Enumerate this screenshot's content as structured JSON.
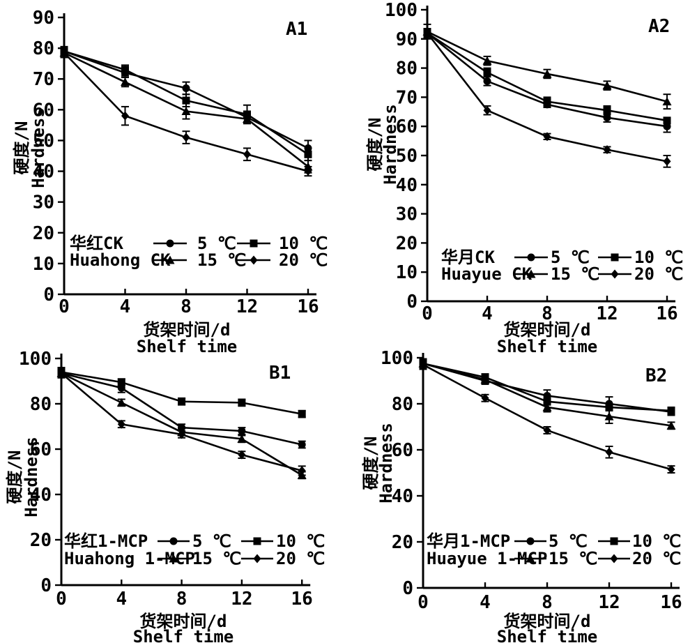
{
  "page": {
    "background": "#ffffff",
    "ink": "#000000"
  },
  "chart_data": [
    {
      "id": "A1",
      "type": "line",
      "panel_label": "A1",
      "group_label_cn": "华红CK",
      "group_label_en": "Huahong CK",
      "xlabel_cn": "货架时间/d",
      "xlabel_en": "Shelf time",
      "ylabel_cn": "硬度/N",
      "ylabel_en": "Hardness",
      "x": [
        0,
        4,
        8,
        12,
        16
      ],
      "ylim": [
        0,
        90
      ],
      "ytick_step": 10,
      "grid": false,
      "legend_position": "inside-bottom-left",
      "series": [
        {
          "name": "5 ℃",
          "marker": "circle",
          "values": [
            79,
            72,
            67,
            57.5,
            47.5
          ],
          "errors": [
            1.5,
            1,
            2,
            1.5,
            2.5
          ]
        },
        {
          "name": "10 ℃",
          "marker": "square",
          "values": [
            79,
            73,
            63,
            58.5,
            45.5
          ],
          "errors": [
            1.5,
            1.5,
            2,
            3,
            2
          ]
        },
        {
          "name": "15 ℃",
          "marker": "triangle",
          "values": [
            78.5,
            69,
            59.5,
            57,
            41.5
          ],
          "errors": [
            1.5,
            1.5,
            2.5,
            1.5,
            2
          ]
        },
        {
          "name": "20 ℃",
          "marker": "diamond",
          "values": [
            78.5,
            58,
            51,
            45.5,
            40
          ],
          "errors": [
            1.5,
            3,
            2,
            2,
            1.5
          ]
        }
      ]
    },
    {
      "id": "A2",
      "type": "line",
      "panel_label": "A2",
      "group_label_cn": "华月CK",
      "group_label_en": "Huayue CK",
      "xlabel_cn": "货架时间/d",
      "xlabel_en": "Shelf time",
      "ylabel_cn": "硬度/N",
      "ylabel_en": "Hardness",
      "x": [
        0,
        4,
        8,
        12,
        16
      ],
      "ylim": [
        0,
        100
      ],
      "ytick_step": 10,
      "grid": false,
      "legend_position": "inside-bottom-left",
      "series": [
        {
          "name": "5 ℃",
          "marker": "circle",
          "values": [
            92,
            75.5,
            67.5,
            63,
            60
          ],
          "errors": [
            1.5,
            1.5,
            1,
            1.5,
            2
          ]
        },
        {
          "name": "10 ℃",
          "marker": "square",
          "values": [
            92,
            78.5,
            68.5,
            65.5,
            62
          ],
          "errors": [
            1.5,
            1.5,
            1.5,
            1.5,
            1
          ]
        },
        {
          "name": "15 ℃",
          "marker": "triangle",
          "values": [
            92.5,
            82.5,
            78,
            74,
            68.5
          ],
          "errors": [
            2.5,
            1.5,
            1.5,
            1.5,
            2.5
          ]
        },
        {
          "name": "20 ℃",
          "marker": "diamond",
          "values": [
            92,
            65.5,
            56.5,
            52,
            48
          ],
          "errors": [
            1.5,
            1.5,
            1,
            1,
            2
          ]
        }
      ]
    },
    {
      "id": "B1",
      "type": "line",
      "panel_label": "B1",
      "group_label_cn": "华红1-MCP",
      "group_label_en": "Huahong 1-MCP",
      "xlabel_cn": "货架时间/d",
      "xlabel_en": "Shelf time",
      "ylabel_cn": "硬度/N",
      "ylabel_en": "Hardness",
      "x": [
        0,
        4,
        8,
        12,
        16
      ],
      "ylim": [
        0,
        100
      ],
      "ytick_step": 20,
      "grid": false,
      "legend_position": "inside-bottom-left",
      "series": [
        {
          "name": "5 ℃",
          "marker": "circle",
          "values": [
            93.5,
            87,
            69.5,
            68,
            62
          ],
          "errors": [
            2,
            2,
            1.5,
            1.5,
            1.5
          ]
        },
        {
          "name": "10 ℃",
          "marker": "square",
          "values": [
            94,
            89.5,
            81,
            80.5,
            75.5
          ],
          "errors": [
            2,
            1.5,
            1.5,
            1.5,
            1.5
          ]
        },
        {
          "name": "15 ℃",
          "marker": "triangle",
          "values": [
            93.5,
            80.5,
            67.5,
            64.5,
            48.5
          ],
          "errors": [
            2,
            1.5,
            1.5,
            1.5,
            1.5
          ]
        },
        {
          "name": "20 ℃",
          "marker": "diamond",
          "values": [
            93.5,
            71,
            66.5,
            57.5,
            50.5
          ],
          "errors": [
            2,
            1.5,
            1.5,
            1.5,
            2
          ]
        }
      ]
    },
    {
      "id": "B2",
      "type": "line",
      "panel_label": "B2",
      "group_label_cn": "华月1-MCP",
      "group_label_en": "Huayue 1-MCP",
      "xlabel_cn": "货架时间/d",
      "xlabel_en": "Shelf time",
      "ylabel_cn": "硬度/N",
      "ylabel_en": "Hardness",
      "x": [
        0,
        4,
        8,
        12,
        16
      ],
      "ylim": [
        0,
        100
      ],
      "ytick_step": 20,
      "grid": false,
      "legend_position": "inside-bottom-left",
      "series": [
        {
          "name": "5 ℃",
          "marker": "circle",
          "values": [
            97.5,
            90,
            83.5,
            80,
            76.5
          ],
          "errors": [
            2,
            1.5,
            2.5,
            3,
            1.5
          ]
        },
        {
          "name": "10 ℃",
          "marker": "square",
          "values": [
            97.5,
            91.5,
            81,
            78.5,
            77
          ],
          "errors": [
            2,
            1.5,
            1.5,
            1.5,
            1.5
          ]
        },
        {
          "name": "15 ℃",
          "marker": "triangle",
          "values": [
            97.5,
            90.5,
            78.5,
            74.5,
            70.5
          ],
          "errors": [
            2,
            1.5,
            2,
            3,
            1.5
          ]
        },
        {
          "name": "20 ℃",
          "marker": "diamond",
          "values": [
            97,
            82.5,
            68.5,
            59,
            51.5
          ],
          "errors": [
            2,
            1.5,
            1.5,
            2.5,
            1.5
          ]
        }
      ]
    }
  ]
}
